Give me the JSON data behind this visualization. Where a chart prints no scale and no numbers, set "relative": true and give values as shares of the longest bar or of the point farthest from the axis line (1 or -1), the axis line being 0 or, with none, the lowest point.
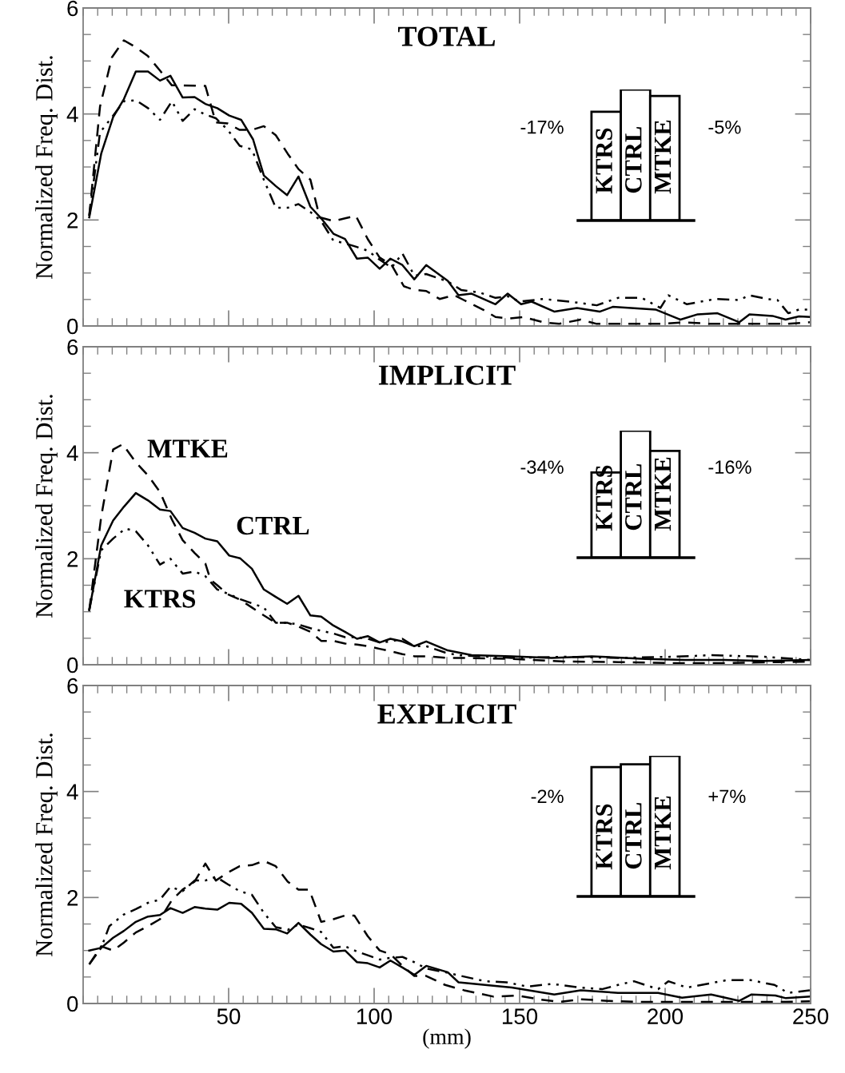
{
  "chart_data": [
    {
      "type": "line",
      "title": "TOTAL",
      "ylabel": "Normalized Freq. Dist.",
      "xlim": [
        0,
        250
      ],
      "ylim": [
        0,
        6
      ],
      "xticks": [
        50,
        100,
        150,
        200,
        250
      ],
      "yticks": [
        0,
        2,
        4,
        6
      ],
      "tick_labels": "y",
      "series": [
        {
          "color": "#000000",
          "line_style": "solid",
          "x": [
            2.1,
            6.2,
            10.3,
            14,
            18.1,
            22.3,
            26.4,
            30,
            34.2,
            38.3,
            42,
            46.1,
            50.2,
            54.3,
            58.4,
            62.1,
            66.2,
            70.1,
            74,
            78.1,
            81.8,
            86,
            90,
            94.1,
            97.8,
            101.9,
            105.6,
            109.7,
            113.8,
            117.9,
            125.3,
            129,
            133.5,
            141.7,
            145.9,
            150.5,
            154.1,
            162,
            169.7,
            177.5,
            182,
            196.7,
            205.3,
            211.2,
            218,
            225.5,
            229,
            236.9,
            241.4,
            246,
            249.7
          ],
          "values": [
            2.05,
            3.25,
            3.94,
            4.28,
            4.8,
            4.8,
            4.63,
            4.72,
            4.31,
            4.32,
            4.19,
            4.11,
            3.97,
            3.89,
            3.52,
            2.84,
            2.64,
            2.47,
            2.82,
            2.25,
            2.03,
            1.74,
            1.64,
            1.27,
            1.29,
            1.08,
            1.27,
            1.15,
            0.88,
            1.15,
            0.85,
            0.58,
            0.61,
            0.41,
            0.61,
            0.41,
            0.46,
            0.27,
            0.34,
            0.27,
            0.36,
            0.31,
            0.12,
            0.22,
            0.24,
            0.07,
            0.22,
            0.19,
            0.12,
            0.18,
            0.17
          ]
        },
        {
          "color": "#000000",
          "line_style": "dashed",
          "x": [
            2.1,
            5.8,
            9.9,
            14,
            18.1,
            22.3,
            26.4,
            30.5,
            34.2,
            42,
            45.6,
            49.7,
            53.8,
            58,
            62.1,
            66.2,
            70.3,
            74,
            78.1,
            81.3,
            86,
            90,
            93.7,
            97.8,
            101.9,
            106,
            110.2,
            113.8,
            117.9,
            122.5,
            127.5,
            130.8,
            138,
            141.7,
            146.3,
            151.3,
            158.1,
            163.6,
            171,
            176.5,
            183.8,
            191.1,
            198.4,
            206.7,
            215.8,
            225.5,
            234.2,
            241.4,
            249.7
          ],
          "values": [
            2.08,
            4.14,
            5.07,
            5.39,
            5.26,
            5.09,
            4.82,
            4.54,
            4.54,
            4.53,
            3.84,
            3.82,
            3.7,
            3.7,
            3.77,
            3.6,
            3.25,
            2.96,
            2.76,
            2.05,
            1.98,
            2.03,
            2.08,
            1.64,
            1.29,
            1.15,
            0.75,
            0.68,
            0.66,
            0.51,
            0.58,
            0.49,
            0.29,
            0.17,
            0.14,
            0.17,
            0.07,
            0.04,
            0.12,
            0.04,
            0.04,
            0.04,
            0.04,
            0.07,
            0.04,
            0.04,
            0.04,
            0.04,
            0.07
          ]
        },
        {
          "color": "#000000",
          "line_style": "dotted",
          "x": [
            2.1,
            5.8,
            10.3,
            14,
            18.1,
            22.3,
            26.4,
            30.5,
            34.2,
            38.3,
            42,
            45.6,
            49.7,
            53.8,
            58,
            62.1,
            66.2,
            70.3,
            74,
            78.1,
            81.8,
            86,
            90,
            94.1,
            97.8,
            101.9,
            106,
            109.7,
            113.8,
            117.9,
            125.3,
            129.9,
            136.3,
            141.7,
            145.9,
            150,
            158.1,
            167.2,
            176.5,
            183.8,
            192,
            198.4,
            201.1,
            207.5,
            217.3,
            225.5,
            229,
            234.9,
            238.6,
            242.3,
            246,
            249.7
          ],
          "values": [
            2.08,
            3.65,
            3.97,
            4.24,
            4.26,
            4.11,
            3.89,
            4.24,
            3.87,
            4.09,
            3.99,
            3.92,
            3.7,
            3.4,
            3.33,
            2.76,
            2.23,
            2.23,
            2.3,
            2.15,
            1.98,
            1.61,
            1.56,
            1.49,
            1.42,
            1.25,
            1.1,
            1.37,
            0.95,
            0.98,
            0.84,
            0.68,
            0.63,
            0.53,
            0.56,
            0.46,
            0.51,
            0.46,
            0.39,
            0.53,
            0.53,
            0.34,
            0.58,
            0.41,
            0.51,
            0.49,
            0.58,
            0.51,
            0.49,
            0.24,
            0.31,
            0.31
          ]
        }
      ]
    },
    {
      "type": "bar",
      "relative": true,
      "categories": [
        "KTRS",
        "CTRL",
        "MTKE"
      ],
      "values": [
        0.83,
        1,
        0.95
      ],
      "annotations": [
        "-17%",
        "-5%"
      ],
      "color": "#ffffff"
    },
    {
      "type": "line",
      "title": "IMPLICIT",
      "ylabel": "Normalized Freq. Dist.",
      "xlim": [
        0,
        250
      ],
      "ylim": [
        0,
        6
      ],
      "xticks": [
        50,
        100,
        150,
        200,
        250
      ],
      "yticks": [
        0,
        2,
        4,
        6
      ],
      "tick_labels": "y",
      "series": [
        {
          "name": "CTRL",
          "color": "#000000",
          "line_style": "solid",
          "x": [
            2.1,
            6.2,
            10.3,
            14,
            18.1,
            22.3,
            26.4,
            30,
            34.2,
            38.3,
            42,
            46.1,
            50.2,
            53.9,
            58,
            62.1,
            66.2,
            70.1,
            74,
            78.1,
            81.8,
            86,
            90,
            94.1,
            97.8,
            101.9,
            105.6,
            109.7,
            113.8,
            117.9,
            125.3,
            133.5,
            147.3,
            161,
            174.8,
            193.1,
            206.8,
            220.5,
            234.2,
            249.7
          ],
          "values": [
            1.03,
            2.25,
            2.72,
            2.98,
            3.24,
            3.1,
            2.93,
            2.9,
            2.58,
            2.49,
            2.38,
            2.33,
            2.06,
            2.01,
            1.81,
            1.42,
            1.28,
            1.15,
            1.3,
            0.93,
            0.91,
            0.74,
            0.62,
            0.49,
            0.54,
            0.42,
            0.49,
            0.44,
            0.35,
            0.44,
            0.27,
            0.18,
            0.16,
            0.13,
            0.16,
            0.11,
            0.09,
            0.09,
            0.07,
            0.09
          ]
        },
        {
          "name": "MTKE",
          "color": "#000000",
          "line_style": "dashed",
          "x": [
            2.1,
            6.2,
            10.3,
            13.6,
            18.1,
            22.3,
            26.4,
            30.5,
            34.2,
            38.3,
            42,
            43.8,
            46.1,
            49.7,
            53.8,
            58,
            62.1,
            66.2,
            70.3,
            74,
            78.1,
            81.8,
            86,
            90,
            94.1,
            97.8,
            101.9,
            106,
            109.7,
            113.8,
            117.9,
            124.4,
            128.8,
            147.3,
            165.6,
            184,
            202.3,
            220.5,
            238.8,
            249.7
          ],
          "values": [
            1.03,
            2.79,
            4.06,
            4.16,
            3.82,
            3.57,
            3.26,
            2.74,
            2.35,
            2.11,
            1.91,
            1.6,
            1.5,
            1.33,
            1.23,
            1.08,
            0.93,
            0.79,
            0.79,
            0.72,
            0.62,
            0.45,
            0.45,
            0.4,
            0.38,
            0.35,
            0.3,
            0.25,
            0.2,
            0.16,
            0.16,
            0.13,
            0.13,
            0.11,
            0.06,
            0.05,
            0.03,
            0.03,
            0.05,
            0.06
          ]
        },
        {
          "name": "KTRS",
          "color": "#000000",
          "line_style": "dotted",
          "x": [
            2.1,
            6.2,
            10.3,
            14.5,
            18.1,
            22.3,
            26.4,
            30,
            34.2,
            38.3,
            42,
            46.1,
            50.2,
            54.3,
            58.4,
            62.1,
            66.2,
            70.3,
            74,
            78.1,
            81.8,
            86,
            90,
            94.1,
            97.8,
            101.9,
            106,
            109.7,
            113.8,
            117.9,
            124.4,
            128.8,
            147.3,
            165.6,
            184,
            202.3,
            216,
            234.2,
            249.7
          ],
          "values": [
            1.03,
            2.16,
            2.38,
            2.57,
            2.52,
            2.25,
            1.89,
            2.0,
            1.72,
            1.76,
            1.67,
            1.42,
            1.33,
            1.23,
            1.15,
            1.08,
            0.79,
            0.79,
            0.76,
            0.69,
            0.64,
            0.59,
            0.52,
            0.52,
            0.49,
            0.42,
            0.44,
            0.49,
            0.35,
            0.35,
            0.23,
            0.18,
            0.13,
            0.15,
            0.13,
            0.15,
            0.18,
            0.15,
            0.09
          ]
        }
      ]
    },
    {
      "type": "bar",
      "relative": true,
      "categories": [
        "KTRS",
        "CTRL",
        "MTKE"
      ],
      "values": [
        0.67,
        1,
        0.84
      ],
      "annotations": [
        "-34%",
        "-16%"
      ],
      "color": "#ffffff"
    },
    {
      "type": "line",
      "title": "EXPLICIT",
      "ylabel": "Normalized Freq. Dist.",
      "xlabel": "(mm)",
      "xlim": [
        0,
        250
      ],
      "ylim": [
        0,
        6
      ],
      "xticks": [
        50,
        100,
        150,
        200,
        250
      ],
      "yticks": [
        0,
        2,
        4,
        6
      ],
      "series": [
        {
          "color": "#000000",
          "line_style": "solid",
          "x": [
            2.1,
            6.2,
            10.3,
            14,
            18.1,
            22.3,
            26.4,
            30,
            34.2,
            38.3,
            42,
            46.1,
            50.2,
            54.3,
            58,
            62.1,
            66.2,
            70.1,
            74,
            78.1,
            81.8,
            86,
            90,
            94.1,
            97.8,
            101.9,
            105.6,
            109.7,
            113.8,
            117.9,
            125.3,
            129,
            138.1,
            147.3,
            161.9,
            171,
            183.8,
            197.6,
            205.8,
            215.8,
            225.5,
            229.7,
            237.9,
            241.5,
            249.7
          ],
          "values": [
            1.0,
            1.05,
            1.24,
            1.37,
            1.54,
            1.64,
            1.67,
            1.8,
            1.71,
            1.82,
            1.79,
            1.77,
            1.9,
            1.88,
            1.71,
            1.41,
            1.4,
            1.32,
            1.52,
            1.3,
            1.12,
            0.98,
            1.0,
            0.78,
            0.76,
            0.68,
            0.81,
            0.68,
            0.54,
            0.71,
            0.59,
            0.4,
            0.35,
            0.3,
            0.17,
            0.25,
            0.2,
            0.2,
            0.11,
            0.17,
            0.05,
            0.17,
            0.15,
            0.1,
            0.13
          ]
        },
        {
          "color": "#000000",
          "line_style": "dashed",
          "x": [
            2.1,
            6.2,
            10.3,
            14,
            18.1,
            22.3,
            26.4,
            30.5,
            34.2,
            38.3,
            42,
            45.6,
            49.7,
            53.8,
            58,
            62.1,
            66.2,
            70.3,
            74,
            77.7,
            81.8,
            86,
            90,
            93.2,
            97.8,
            101.9,
            105.6,
            109.7,
            113.8,
            117.9,
            124.4,
            130.9,
            141,
            149.2,
            156.5,
            163.8,
            171,
            180.2,
            191.1,
            202.1,
            215.8,
            225,
            238.8,
            249.7
          ],
          "values": [
            0.74,
            1.08,
            1.0,
            1.15,
            1.34,
            1.46,
            1.59,
            1.95,
            2.15,
            2.3,
            2.64,
            2.32,
            2.47,
            2.59,
            2.61,
            2.69,
            2.59,
            2.3,
            2.15,
            2.15,
            1.54,
            1.59,
            1.66,
            1.66,
            1.27,
            1.0,
            0.93,
            0.71,
            0.52,
            0.52,
            0.35,
            0.25,
            0.13,
            0.15,
            0.08,
            0.03,
            0.08,
            0.05,
            0.03,
            0.03,
            0.03,
            0.03,
            0.03,
            0.04
          ]
        },
        {
          "color": "#000000",
          "line_style": "dotted",
          "x": [
            2.1,
            6.2,
            9,
            14,
            18.1,
            22.3,
            26.4,
            30,
            34.2,
            38.3,
            42,
            45.6,
            49.7,
            53.8,
            58,
            62.1,
            66.2,
            70.3,
            74,
            78.1,
            81.8,
            86,
            90,
            94.1,
            97.8,
            101.9,
            105.6,
            109.7,
            113.8,
            117.9,
            124.4,
            129.9,
            138.1,
            145.4,
            152.7,
            161,
            171,
            178.3,
            183.8,
            189.3,
            197.6,
            201.1,
            207.5,
            221.2,
            229.4,
            237.6,
            242.2,
            249.7
          ],
          "values": [
            0.74,
            1.05,
            1.46,
            1.68,
            1.78,
            1.9,
            1.96,
            2.2,
            2.12,
            2.32,
            2.32,
            2.39,
            2.25,
            2.12,
            2.05,
            1.71,
            1.44,
            1.39,
            1.49,
            1.42,
            1.35,
            1.05,
            1.08,
            0.98,
            0.91,
            0.83,
            0.86,
            0.88,
            0.78,
            0.66,
            0.59,
            0.52,
            0.42,
            0.4,
            0.32,
            0.37,
            0.3,
            0.27,
            0.35,
            0.42,
            0.27,
            0.42,
            0.3,
            0.44,
            0.44,
            0.35,
            0.2,
            0.25
          ]
        }
      ]
    },
    {
      "type": "bar",
      "relative": true,
      "categories": [
        "KTRS",
        "CTRL",
        "MTKE"
      ],
      "values": [
        0.92,
        0.94,
        1
      ],
      "annotations": [
        "-2%",
        "+7%"
      ],
      "color": "#ffffff"
    }
  ]
}
